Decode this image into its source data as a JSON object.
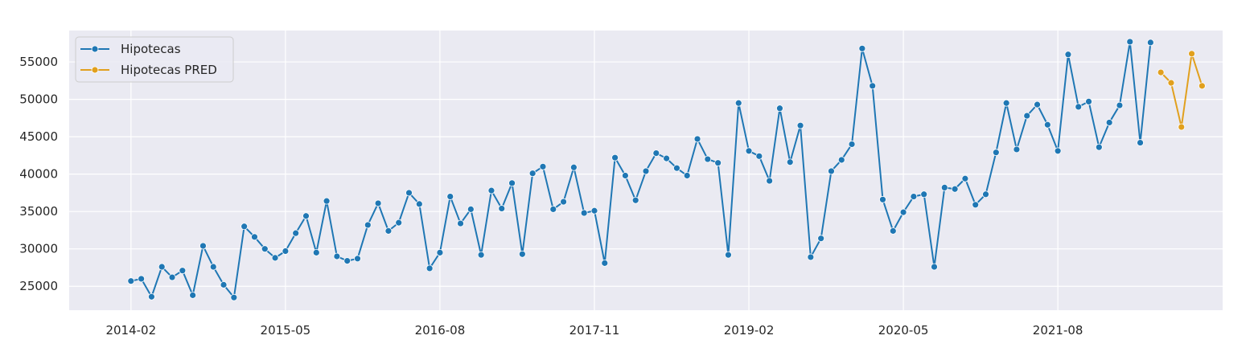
{
  "chart_data": {
    "type": "line",
    "title": "",
    "xlabel": "",
    "ylabel": "",
    "x_ticks": [
      "2014-02",
      "2015-05",
      "2016-08",
      "2017-11",
      "2019-02",
      "2020-05",
      "2021-08"
    ],
    "y_ticks": [
      "25000",
      "30000",
      "35000",
      "40000",
      "45000",
      "50000",
      "55000"
    ],
    "xlim": [
      "2013-08",
      "2022-12"
    ],
    "ylim": [
      21800,
      59200
    ],
    "grid": true,
    "legend_position": "top-left",
    "colors": {
      "background": "#eaeaf2",
      "grid": "#ffffff",
      "Hipotecas": "#1f77b4",
      "Hipotecas PRED": "#e1a01e"
    },
    "series": [
      {
        "name": "Hipotecas",
        "start": "2014-02",
        "frequency": "monthly",
        "values": [
          25700,
          26000,
          23600,
          27600,
          26200,
          27100,
          23800,
          30400,
          27600,
          25200,
          23500,
          33000,
          31600,
          30000,
          28800,
          29700,
          32100,
          34400,
          29500,
          36400,
          29000,
          28400,
          28700,
          33200,
          36100,
          32400,
          33500,
          37500,
          36000,
          27400,
          29500,
          37000,
          33400,
          35300,
          29200,
          37800,
          35400,
          38800,
          29300,
          40100,
          41000,
          35300,
          36300,
          40900,
          34800,
          35100,
          28100,
          42200,
          39800,
          36500,
          40400,
          42800,
          42100,
          40800,
          39800,
          44700,
          42000,
          41500,
          29200,
          49500,
          43100,
          42400,
          39100,
          48800,
          41600,
          46500,
          28900,
          31400,
          40400,
          41900,
          44000,
          56800,
          51800,
          36600,
          32400,
          34900,
          37000,
          37300,
          27600,
          38200,
          38000,
          39400,
          35900,
          37300,
          42900,
          49500,
          43300,
          47800,
          49300,
          46600,
          43100,
          56000,
          49000,
          49700,
          43600,
          46900,
          49200,
          57700,
          44200,
          57600
        ]
      },
      {
        "name": "Hipotecas PRED",
        "start": "2022-06",
        "frequency": "monthly",
        "values": [
          53600,
          52200,
          46300,
          56100,
          51800
        ]
      }
    ]
  }
}
